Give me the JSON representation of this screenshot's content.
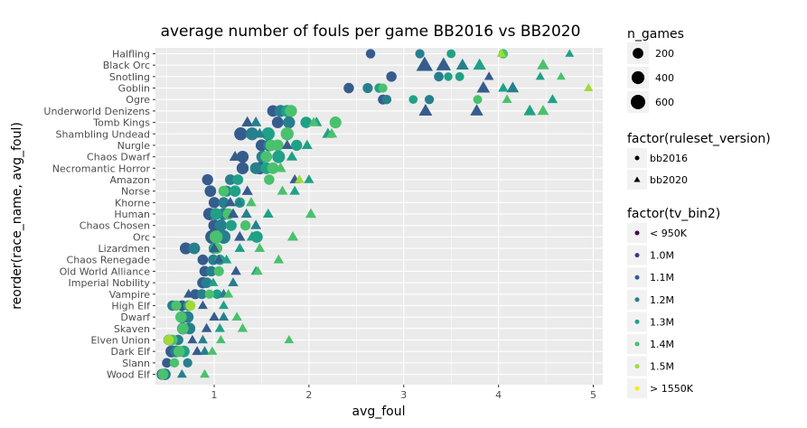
{
  "chart_data": {
    "type": "scatter",
    "title": "average number of fouls per game BB2016 vs BB2020",
    "xlabel": "avg_foul",
    "ylabel": "reorder(race_name, avg_foul)",
    "xlim": [
      0.38,
      5.1
    ],
    "xticks": [
      1,
      2,
      3,
      4,
      5
    ],
    "grid": true,
    "categories": [
      "Halfling",
      "Black Orc",
      "Snotling",
      "Goblin",
      "Ogre",
      "Underworld Denizens",
      "Tomb Kings",
      "Shambling Undead",
      "Nurgle",
      "Chaos Dwarf",
      "Necromantic Horror",
      "Amazon",
      "Norse",
      "Khorne",
      "Human",
      "Chaos Chosen",
      "Orc",
      "Lizardmen",
      "Chaos Renegade",
      "Old World Alliance",
      "Imperial Nobility",
      "Vampire",
      "High Elf",
      "Dwarf",
      "Skaven",
      "Elven Union",
      "Dark Elf",
      "Slann",
      "Wood Elf"
    ],
    "tv_bin_colors": [
      "#440154",
      "#46327e",
      "#365c8d",
      "#277f8e",
      "#1fa187",
      "#4ac16d",
      "#a0da39",
      "#fde725"
    ],
    "legends": {
      "n_games": {
        "title": "n_games",
        "entries": [
          "200",
          "400",
          "600"
        ]
      },
      "ruleset": {
        "title": "factor(ruleset_version)",
        "entries": [
          "bb2016",
          "bb2020"
        ]
      },
      "tv_bin": {
        "title": "factor(tv_bin2)",
        "entries": [
          "< 950K",
          "1.0M",
          "1.1M",
          "1.2M",
          "1.3M",
          "1.4M",
          "1.5M",
          "> 1550K"
        ]
      }
    },
    "point_fields": [
      "race",
      "ruleset",
      "tv_bin_index",
      "avg_foul",
      "n_games"
    ],
    "points": [
      [
        "Halfling",
        "bb2016",
        2,
        2.65,
        120
      ],
      [
        "Halfling",
        "bb2016",
        3,
        3.17,
        110
      ],
      [
        "Halfling",
        "bb2016",
        4,
        3.5,
        90
      ],
      [
        "Halfling",
        "bb2016",
        5,
        4.05,
        120
      ],
      [
        "Halfling",
        "bb2020",
        6,
        4.03,
        40
      ],
      [
        "Halfling",
        "bb2020",
        4,
        4.75,
        30
      ],
      [
        "Black Orc",
        "bb2020",
        2,
        3.22,
        550
      ],
      [
        "Black Orc",
        "bb2020",
        2,
        3.42,
        380
      ],
      [
        "Black Orc",
        "bb2020",
        3,
        3.62,
        200
      ],
      [
        "Black Orc",
        "bb2020",
        4,
        3.8,
        220
      ],
      [
        "Black Orc",
        "bb2020",
        5,
        4.47,
        170
      ],
      [
        "Snotling",
        "bb2016",
        2,
        2.87,
        180
      ],
      [
        "Snotling",
        "bb2016",
        3,
        3.37,
        130
      ],
      [
        "Snotling",
        "bb2016",
        4,
        3.47,
        70
      ],
      [
        "Snotling",
        "bb2016",
        4,
        3.59,
        90
      ],
      [
        "Snotling",
        "bb2020",
        2,
        3.9,
        50
      ],
      [
        "Snotling",
        "bb2020",
        4,
        4.44,
        40
      ],
      [
        "Snotling",
        "bb2020",
        5,
        4.66,
        30
      ],
      [
        "Goblin",
        "bb2016",
        2,
        2.42,
        180
      ],
      [
        "Goblin",
        "bb2016",
        3,
        2.62,
        160
      ],
      [
        "Goblin",
        "bb2016",
        4,
        2.74,
        120
      ],
      [
        "Goblin",
        "bb2016",
        5,
        2.78,
        100
      ],
      [
        "Goblin",
        "bb2020",
        2,
        3.84,
        240
      ],
      [
        "Goblin",
        "bb2020",
        3,
        4.15,
        180
      ],
      [
        "Goblin",
        "bb2020",
        4,
        4.05,
        80
      ],
      [
        "Goblin",
        "bb2020",
        6,
        4.95,
        40
      ],
      [
        "Ogre",
        "bb2016",
        2,
        2.78,
        150
      ],
      [
        "Ogre",
        "bb2016",
        3,
        2.82,
        120
      ],
      [
        "Ogre",
        "bb2016",
        4,
        3.1,
        80
      ],
      [
        "Ogre",
        "bb2016",
        3,
        3.27,
        110
      ],
      [
        "Ogre",
        "bb2016",
        5,
        3.78,
        90
      ],
      [
        "Ogre",
        "bb2020",
        5,
        4.09,
        60
      ],
      [
        "Ogre",
        "bb2020",
        4,
        4.57,
        80
      ],
      [
        "Underworld Denizens",
        "bb2016",
        2,
        1.62,
        280
      ],
      [
        "Underworld Denizens",
        "bb2016",
        3,
        1.7,
        320
      ],
      [
        "Underworld Denizens",
        "bb2016",
        4,
        1.77,
        320
      ],
      [
        "Underworld Denizens",
        "bb2016",
        5,
        1.81,
        330
      ],
      [
        "Underworld Denizens",
        "bb2020",
        2,
        3.23,
        260
      ],
      [
        "Underworld Denizens",
        "bb2020",
        2,
        3.77,
        230
      ],
      [
        "Underworld Denizens",
        "bb2020",
        4,
        4.33,
        180
      ],
      [
        "Underworld Denizens",
        "bb2020",
        5,
        4.47,
        140
      ],
      [
        "Tomb Kings",
        "bb2016",
        2,
        1.67,
        280
      ],
      [
        "Tomb Kings",
        "bb2016",
        3,
        1.79,
        320
      ],
      [
        "Tomb Kings",
        "bb2016",
        4,
        1.97,
        260
      ],
      [
        "Tomb Kings",
        "bb2016",
        5,
        2.28,
        300
      ],
      [
        "Tomb Kings",
        "bb2020",
        2,
        1.35,
        150
      ],
      [
        "Tomb Kings",
        "bb2020",
        3,
        1.44,
        120
      ],
      [
        "Tomb Kings",
        "bb2020",
        4,
        2.08,
        110
      ],
      [
        "Tomb Kings",
        "bb2020",
        5,
        2.05,
        90
      ],
      [
        "Shambling Undead",
        "bb2016",
        2,
        1.28,
        430
      ],
      [
        "Shambling Undead",
        "bb2016",
        3,
        1.4,
        400
      ],
      [
        "Shambling Undead",
        "bb2016",
        4,
        1.57,
        430
      ],
      [
        "Shambling Undead",
        "bb2016",
        5,
        1.77,
        420
      ],
      [
        "Shambling Undead",
        "bb2020",
        3,
        1.48,
        120
      ],
      [
        "Shambling Undead",
        "bb2020",
        4,
        2.2,
        140
      ],
      [
        "Shambling Undead",
        "bb2020",
        5,
        2.24,
        110
      ],
      [
        "Nurgle",
        "bb2016",
        2,
        1.5,
        300
      ],
      [
        "Nurgle",
        "bb2016",
        3,
        1.58,
        330
      ],
      [
        "Nurgle",
        "bb2016",
        4,
        1.87,
        240
      ],
      [
        "Nurgle",
        "bb2016",
        5,
        1.6,
        260
      ],
      [
        "Nurgle",
        "bb2016",
        5,
        1.67,
        280
      ],
      [
        "Nurgle",
        "bb2020",
        2,
        1.77,
        100
      ],
      [
        "Nurgle",
        "bb2020",
        4,
        1.98,
        100
      ],
      [
        "Chaos Dwarf",
        "bb2016",
        2,
        1.3,
        320
      ],
      [
        "Chaos Dwarf",
        "bb2016",
        3,
        1.51,
        350
      ],
      [
        "Chaos Dwarf",
        "bb2016",
        4,
        1.68,
        400
      ],
      [
        "Chaos Dwarf",
        "bb2016",
        5,
        1.55,
        280
      ],
      [
        "Chaos Dwarf",
        "bb2020",
        2,
        1.22,
        130
      ],
      [
        "Chaos Dwarf",
        "bb2020",
        4,
        1.82,
        110
      ],
      [
        "Necromantic Horror",
        "bb2016",
        2,
        1.3,
        330
      ],
      [
        "Necromantic Horror",
        "bb2016",
        2,
        1.48,
        350
      ],
      [
        "Necromantic Horror",
        "bb2016",
        3,
        1.44,
        300
      ],
      [
        "Necromantic Horror",
        "bb2016",
        4,
        1.55,
        290
      ],
      [
        "Necromantic Horror",
        "bb2016",
        5,
        1.62,
        280
      ],
      [
        "Necromantic Horror",
        "bb2020",
        5,
        1.7,
        120
      ],
      [
        "Amazon",
        "bb2016",
        2,
        0.93,
        240
      ],
      [
        "Amazon",
        "bb2016",
        3,
        1.17,
        200
      ],
      [
        "Amazon",
        "bb2016",
        4,
        1.25,
        200
      ],
      [
        "Amazon",
        "bb2016",
        5,
        1.58,
        180
      ],
      [
        "Amazon",
        "bb2020",
        2,
        1.85,
        80
      ],
      [
        "Amazon",
        "bb2020",
        4,
        2.0,
        70
      ],
      [
        "Amazon",
        "bb2020",
        6,
        1.9,
        50
      ],
      [
        "Norse",
        "bb2016",
        2,
        0.96,
        280
      ],
      [
        "Norse",
        "bb2016",
        3,
        1.13,
        230
      ],
      [
        "Norse",
        "bb2016",
        4,
        1.22,
        250
      ],
      [
        "Norse",
        "bb2016",
        5,
        1.1,
        200
      ],
      [
        "Norse",
        "bb2020",
        2,
        1.35,
        110
      ],
      [
        "Norse",
        "bb2020",
        4,
        1.85,
        80
      ],
      [
        "Norse",
        "bb2020",
        5,
        1.72,
        90
      ],
      [
        "Khorne",
        "bb2016",
        2,
        1.0,
        240
      ],
      [
        "Khorne",
        "bb2016",
        3,
        1.1,
        220
      ],
      [
        "Khorne",
        "bb2016",
        4,
        1.27,
        180
      ],
      [
        "Khorne",
        "bb2020",
        2,
        1.17,
        100
      ],
      [
        "Khorne",
        "bb2020",
        3,
        1.26,
        80
      ],
      [
        "Khorne",
        "bb2020",
        5,
        1.39,
        90
      ],
      [
        "Human",
        "bb2016",
        2,
        0.95,
        370
      ],
      [
        "Human",
        "bb2016",
        3,
        1.1,
        330
      ],
      [
        "Human",
        "bb2016",
        4,
        1.02,
        300
      ],
      [
        "Human",
        "bb2016",
        5,
        1.15,
        260
      ],
      [
        "Human",
        "bb2020",
        2,
        1.2,
        110
      ],
      [
        "Human",
        "bb2020",
        3,
        1.34,
        100
      ],
      [
        "Human",
        "bb2020",
        4,
        1.57,
        90
      ],
      [
        "Human",
        "bb2020",
        5,
        2.02,
        110
      ],
      [
        "Chaos Chosen",
        "bb2016",
        2,
        1.0,
        300
      ],
      [
        "Chaos Chosen",
        "bb2016",
        3,
        1.07,
        320
      ],
      [
        "Chaos Chosen",
        "bb2016",
        4,
        1.18,
        220
      ],
      [
        "Chaos Chosen",
        "bb2016",
        5,
        1.33,
        170
      ],
      [
        "Chaos Chosen",
        "bb2020",
        3,
        1.44,
        100
      ],
      [
        "Orc",
        "bb2016",
        2,
        0.98,
        550
      ],
      [
        "Orc",
        "bb2016",
        3,
        1.1,
        500
      ],
      [
        "Orc",
        "bb2016",
        4,
        1.45,
        300
      ],
      [
        "Orc",
        "bb2016",
        5,
        1.02,
        420
      ],
      [
        "Orc",
        "bb2020",
        2,
        1.27,
        120
      ],
      [
        "Orc",
        "bb2020",
        4,
        1.4,
        110
      ],
      [
        "Orc",
        "bb2020",
        5,
        1.83,
        110
      ],
      [
        "Lizardmen",
        "bb2016",
        2,
        0.7,
        310
      ],
      [
        "Lizardmen",
        "bb2016",
        3,
        0.79,
        280
      ],
      [
        "Lizardmen",
        "bb2016",
        4,
        1.0,
        240
      ],
      [
        "Lizardmen",
        "bb2016",
        5,
        1.03,
        200
      ],
      [
        "Lizardmen",
        "bb2020",
        2,
        1.0,
        90
      ],
      [
        "Lizardmen",
        "bb2020",
        4,
        1.27,
        80
      ],
      [
        "Lizardmen",
        "bb2020",
        5,
        1.48,
        80
      ],
      [
        "Chaos Renegade",
        "bb2016",
        2,
        0.88,
        200
      ],
      [
        "Chaos Renegade",
        "bb2016",
        3,
        0.99,
        190
      ],
      [
        "Chaos Renegade",
        "bb2016",
        4,
        1.06,
        180
      ],
      [
        "Chaos Renegade",
        "bb2020",
        2,
        1.05,
        80
      ],
      [
        "Chaos Renegade",
        "bb2020",
        4,
        1.13,
        70
      ],
      [
        "Chaos Renegade",
        "bb2020",
        5,
        1.68,
        80
      ],
      [
        "Old World Alliance",
        "bb2016",
        2,
        0.9,
        200
      ],
      [
        "Old World Alliance",
        "bb2016",
        3,
        0.97,
        180
      ],
      [
        "Old World Alliance",
        "bb2016",
        5,
        1.05,
        150
      ],
      [
        "Old World Alliance",
        "bb2020",
        2,
        1.23,
        80
      ],
      [
        "Old World Alliance",
        "bb2020",
        4,
        1.44,
        70
      ],
      [
        "Old World Alliance",
        "bb2020",
        5,
        1.46,
        60
      ],
      [
        "Imperial Nobility",
        "bb2016",
        2,
        0.88,
        250
      ],
      [
        "Imperial Nobility",
        "bb2016",
        3,
        0.92,
        200
      ],
      [
        "Imperial Nobility",
        "bb2020",
        3,
        1.2,
        80
      ],
      [
        "Imperial Nobility",
        "bb2020",
        4,
        0.99,
        60
      ],
      [
        "Vampire",
        "bb2016",
        2,
        0.8,
        160
      ],
      [
        "Vampire",
        "bb2016",
        3,
        0.87,
        150
      ],
      [
        "Vampire",
        "bb2016",
        4,
        1.03,
        130
      ],
      [
        "Vampire",
        "bb2016",
        5,
        0.95,
        110
      ],
      [
        "Vampire",
        "bb2020",
        2,
        0.73,
        70
      ],
      [
        "Vampire",
        "bb2020",
        3,
        1.1,
        70
      ],
      [
        "Vampire",
        "bb2020",
        5,
        1.15,
        60
      ],
      [
        "High Elf",
        "bb2016",
        2,
        0.66,
        200
      ],
      [
        "High Elf",
        "bb2016",
        3,
        0.56,
        180
      ],
      [
        "High Elf",
        "bb2016",
        4,
        0.73,
        190
      ],
      [
        "High Elf",
        "bb2016",
        5,
        0.6,
        170
      ],
      [
        "High Elf",
        "bb2016",
        6,
        0.75,
        160
      ],
      [
        "High Elf",
        "bb2020",
        2,
        0.88,
        60
      ],
      [
        "High Elf",
        "bb2020",
        4,
        1.1,
        60
      ],
      [
        "Dwarf",
        "bb2016",
        2,
        0.66,
        320
      ],
      [
        "Dwarf",
        "bb2016",
        3,
        0.72,
        300
      ],
      [
        "Dwarf",
        "bb2016",
        5,
        0.65,
        260
      ],
      [
        "Dwarf",
        "bb2020",
        2,
        1.0,
        80
      ],
      [
        "Dwarf",
        "bb2020",
        3,
        1.1,
        70
      ],
      [
        "Dwarf",
        "bb2020",
        5,
        1.24,
        70
      ],
      [
        "Skaven",
        "bb2016",
        2,
        0.67,
        300
      ],
      [
        "Skaven",
        "bb2016",
        3,
        0.74,
        280
      ],
      [
        "Skaven",
        "bb2016",
        5,
        0.67,
        260
      ],
      [
        "Skaven",
        "bb2020",
        2,
        0.92,
        80
      ],
      [
        "Skaven",
        "bb2020",
        4,
        1.06,
        70
      ],
      [
        "Skaven",
        "bb2020",
        5,
        1.3,
        70
      ],
      [
        "Elven Union",
        "bb2016",
        2,
        0.52,
        200
      ],
      [
        "Elven Union",
        "bb2016",
        3,
        0.62,
        180
      ],
      [
        "Elven Union",
        "bb2016",
        5,
        0.56,
        190
      ],
      [
        "Elven Union",
        "bb2016",
        6,
        0.52,
        170
      ],
      [
        "Elven Union",
        "bb2020",
        2,
        0.77,
        60
      ],
      [
        "Elven Union",
        "bb2020",
        3,
        0.88,
        60
      ],
      [
        "Elven Union",
        "bb2020",
        5,
        1.07,
        50
      ],
      [
        "Elven Union",
        "bb2020",
        5,
        1.79,
        50
      ],
      [
        "Dark Elf",
        "bb2016",
        2,
        0.55,
        330
      ],
      [
        "Dark Elf",
        "bb2016",
        3,
        0.6,
        300
      ],
      [
        "Dark Elf",
        "bb2016",
        4,
        0.68,
        280
      ],
      [
        "Dark Elf",
        "bb2016",
        5,
        0.63,
        250
      ],
      [
        "Dark Elf",
        "bb2020",
        2,
        0.82,
        80
      ],
      [
        "Dark Elf",
        "bb2020",
        3,
        0.9,
        70
      ],
      [
        "Dark Elf",
        "bb2020",
        5,
        0.98,
        60
      ],
      [
        "Slann",
        "bb2016",
        2,
        0.5,
        130
      ],
      [
        "Slann",
        "bb2016",
        3,
        0.72,
        110
      ],
      [
        "Slann",
        "bb2016",
        5,
        0.58,
        120
      ],
      [
        "Wood Elf",
        "bb2016",
        2,
        0.45,
        230
      ],
      [
        "Wood Elf",
        "bb2016",
        3,
        0.48,
        280
      ],
      [
        "Wood Elf",
        "bb2016",
        5,
        0.46,
        200
      ],
      [
        "Wood Elf",
        "bb2020",
        3,
        0.66,
        60
      ],
      [
        "Wood Elf",
        "bb2020",
        5,
        0.9,
        60
      ]
    ]
  }
}
